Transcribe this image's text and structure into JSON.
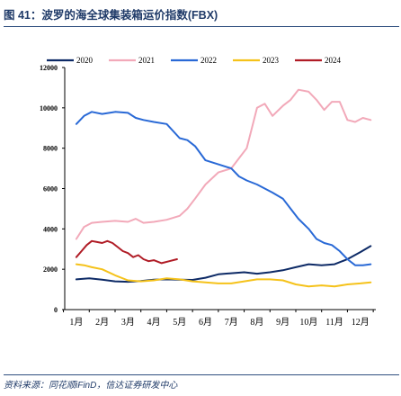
{
  "title": "图 41：波罗的海全球集装箱运价指数(FBX)",
  "source": "资料来源：同花顺iFinD，信达证券研发中心",
  "chart_data": {
    "type": "line",
    "ylim": [
      0,
      12000
    ],
    "yticks": [
      "0",
      "2000",
      "4000",
      "6000",
      "8000",
      "10000",
      "12000"
    ],
    "xticks": [
      "1月",
      "2月",
      "3月",
      "4月",
      "5月",
      "6月",
      "7月",
      "8月",
      "9月",
      "10月",
      "11月",
      "12月"
    ],
    "legend_position": "top",
    "grid": false,
    "series": [
      {
        "name": "2020",
        "color": "#0d2a66",
        "x": [
          1.0,
          1.5,
          2.0,
          2.5,
          3.0,
          3.5,
          4.0,
          4.5,
          5.0,
          5.5,
          6.0,
          6.5,
          7.0,
          7.5,
          8.0,
          8.5,
          9.0,
          9.5,
          10.0,
          10.5,
          11.0,
          11.5,
          12.0,
          12.4
        ],
        "values": [
          1500,
          1550,
          1480,
          1400,
          1380,
          1420,
          1480,
          1500,
          1480,
          1470,
          1580,
          1750,
          1800,
          1850,
          1780,
          1850,
          1950,
          2100,
          2250,
          2200,
          2250,
          2500,
          2850,
          3150
        ]
      },
      {
        "name": "2021",
        "color": "#f2a9b9",
        "x": [
          1.0,
          1.3,
          1.6,
          2.0,
          2.5,
          3.0,
          3.3,
          3.6,
          4.0,
          4.5,
          5.0,
          5.3,
          5.6,
          6.0,
          6.5,
          7.0,
          7.3,
          7.6,
          8.0,
          8.3,
          8.6,
          9.0,
          9.3,
          9.6,
          10.0,
          10.3,
          10.6,
          10.9,
          11.2,
          11.5,
          11.8,
          12.1,
          12.4
        ],
        "values": [
          3500,
          4100,
          4300,
          4350,
          4400,
          4350,
          4500,
          4300,
          4350,
          4450,
          4650,
          5000,
          5500,
          6200,
          6800,
          7000,
          7500,
          8000,
          10000,
          10200,
          9600,
          10100,
          10400,
          10900,
          10800,
          10400,
          9900,
          10300,
          10300,
          9400,
          9300,
          9500,
          9400
        ]
      },
      {
        "name": "2022",
        "color": "#2969d6",
        "x": [
          1.0,
          1.3,
          1.6,
          2.0,
          2.5,
          3.0,
          3.3,
          3.6,
          4.0,
          4.5,
          5.0,
          5.3,
          5.6,
          6.0,
          6.5,
          7.0,
          7.3,
          7.6,
          8.0,
          8.3,
          8.6,
          9.0,
          9.3,
          9.6,
          10.0,
          10.3,
          10.6,
          10.9,
          11.2,
          11.5,
          11.8,
          12.1,
          12.4
        ],
        "values": [
          9200,
          9600,
          9800,
          9700,
          9800,
          9750,
          9500,
          9400,
          9300,
          9200,
          8500,
          8400,
          8100,
          7400,
          7200,
          7000,
          6600,
          6400,
          6200,
          6000,
          5800,
          5500,
          5000,
          4500,
          4000,
          3500,
          3300,
          3200,
          2900,
          2500,
          2200,
          2200,
          2250
        ]
      },
      {
        "name": "2023",
        "color": "#f5c21a",
        "x": [
          1.0,
          1.3,
          1.6,
          2.0,
          2.5,
          3.0,
          3.5,
          4.0,
          4.5,
          5.0,
          5.5,
          6.0,
          6.5,
          7.0,
          7.5,
          8.0,
          8.5,
          9.0,
          9.5,
          10.0,
          10.5,
          11.0,
          11.5,
          12.0,
          12.4
        ],
        "values": [
          2250,
          2200,
          2100,
          2000,
          1700,
          1450,
          1400,
          1450,
          1550,
          1500,
          1400,
          1350,
          1300,
          1300,
          1400,
          1500,
          1500,
          1450,
          1250,
          1150,
          1200,
          1150,
          1250,
          1300,
          1350
        ]
      },
      {
        "name": "2024",
        "color": "#b01c26",
        "x": [
          1.0,
          1.2,
          1.4,
          1.6,
          1.8,
          2.0,
          2.2,
          2.4,
          2.6,
          2.8,
          3.0,
          3.2,
          3.4,
          3.6,
          3.8,
          4.0,
          4.3,
          4.6,
          4.9
        ],
        "values": [
          2600,
          2900,
          3200,
          3400,
          3350,
          3300,
          3400,
          3300,
          3100,
          2900,
          2800,
          2600,
          2700,
          2500,
          2400,
          2450,
          2300,
          2400,
          2500
        ]
      }
    ]
  }
}
